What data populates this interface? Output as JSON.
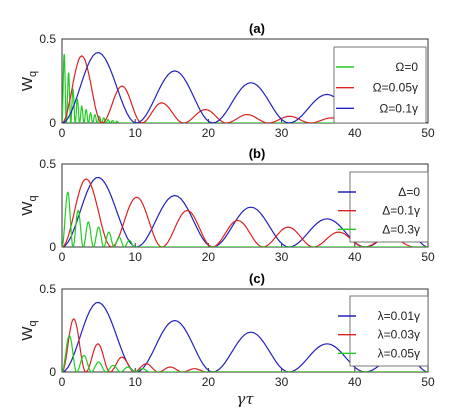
{
  "chart_data": [
    {
      "type": "line",
      "title": "(a)",
      "xlabel": "",
      "ylabel": "W",
      "ylabel_sub": "q",
      "xlim": [
        0,
        50
      ],
      "ylim": [
        0,
        0.5
      ],
      "xticks": [
        "0",
        "10",
        "20",
        "30",
        "40",
        "50"
      ],
      "yticks": [
        "0",
        "0.5"
      ],
      "legend_position": "right",
      "series": [
        {
          "name": "Ω=0",
          "color": "#22cc22",
          "peaks": [
            [
              0.3,
              0.41
            ],
            [
              0.9,
              0.3
            ],
            [
              1.5,
              0.2
            ],
            [
              2.1,
              0.14
            ],
            [
              2.7,
              0.1
            ],
            [
              3.3,
              0.08
            ],
            [
              3.9,
              0.06
            ],
            [
              4.5,
              0.05
            ],
            [
              5.1,
              0.04
            ],
            [
              5.7,
              0.03
            ],
            [
              6.3,
              0.02
            ],
            [
              6.9,
              0.015
            ],
            [
              7.5,
              0.01
            ]
          ]
        },
        {
          "name": "Ω=0.05γ",
          "color": "#dd2222",
          "peaks": [
            [
              2.7,
              0.4
            ],
            [
              8.2,
              0.22
            ],
            [
              13.6,
              0.12
            ],
            [
              19.6,
              0.08
            ],
            [
              25.3,
              0.05
            ],
            [
              31.1,
              0.04
            ],
            [
              36.8,
              0.03
            ],
            [
              42.5,
              0.02
            ],
            [
              48.2,
              0.015
            ]
          ]
        },
        {
          "name": "Ω=0.1γ",
          "color": "#2222bb",
          "peaks": [
            [
              4.9,
              0.42
            ],
            [
              15.4,
              0.31
            ],
            [
              25.8,
              0.24
            ],
            [
              36.2,
              0.17
            ],
            [
              46.6,
              0.13
            ]
          ]
        }
      ]
    },
    {
      "type": "line",
      "title": "(b)",
      "xlabel": "",
      "ylabel": "W",
      "ylabel_sub": "q",
      "xlim": [
        0,
        50
      ],
      "ylim": [
        0,
        0.5
      ],
      "xticks": [
        "0",
        "10",
        "20",
        "30",
        "40",
        "50"
      ],
      "yticks": [
        "0",
        "0.5"
      ],
      "legend_position": "right",
      "series": [
        {
          "name": "Δ=0",
          "color": "#2222bb",
          "peaks": [
            [
              4.9,
              0.42
            ],
            [
              15.4,
              0.31
            ],
            [
              25.8,
              0.24
            ],
            [
              36.2,
              0.17
            ],
            [
              46.6,
              0.13
            ]
          ]
        },
        {
          "name": "Δ=0.1γ",
          "color": "#dd2222",
          "peaks": [
            [
              3.3,
              0.41
            ],
            [
              10.2,
              0.3
            ],
            [
              17.1,
              0.22
            ],
            [
              24.0,
              0.16
            ],
            [
              30.9,
              0.12
            ],
            [
              37.8,
              0.09
            ],
            [
              44.7,
              0.06
            ]
          ]
        },
        {
          "name": "Δ=0.3γ",
          "color": "#22cc22",
          "peaks": [
            [
              0.8,
              0.33
            ],
            [
              2.2,
              0.22
            ],
            [
              3.6,
              0.15
            ],
            [
              5.0,
              0.12
            ],
            [
              6.4,
              0.09
            ],
            [
              7.8,
              0.06
            ],
            [
              9.2,
              0.04
            ]
          ]
        }
      ]
    },
    {
      "type": "line",
      "title": "(c)",
      "xlabel": "γτ",
      "ylabel": "W",
      "ylabel_sub": "q",
      "xlim": [
        0,
        50
      ],
      "ylim": [
        0,
        0.5
      ],
      "xticks": [
        "0",
        "10",
        "20",
        "30",
        "40",
        "50"
      ],
      "yticks": [
        "0",
        "0.5"
      ],
      "legend_position": "right",
      "series": [
        {
          "name": "λ=0.01γ",
          "color": "#2222bb",
          "peaks": [
            [
              4.9,
              0.42
            ],
            [
              15.4,
              0.31
            ],
            [
              25.8,
              0.24
            ],
            [
              36.2,
              0.17
            ],
            [
              46.6,
              0.13
            ]
          ]
        },
        {
          "name": "λ=0.03γ",
          "color": "#dd2222",
          "peaks": [
            [
              1.6,
              0.32
            ],
            [
              4.9,
              0.17
            ],
            [
              8.2,
              0.09
            ],
            [
              11.5,
              0.05
            ],
            [
              14.8,
              0.03
            ],
            [
              18.1,
              0.02
            ]
          ]
        },
        {
          "name": "λ=0.05γ",
          "color": "#22cc22",
          "peaks": [
            [
              1.0,
              0.22
            ],
            [
              3.0,
              0.1
            ],
            [
              5.0,
              0.06
            ],
            [
              7.0,
              0.04
            ],
            [
              9.0,
              0.03
            ],
            [
              11.0,
              0.02
            ]
          ]
        }
      ]
    }
  ]
}
